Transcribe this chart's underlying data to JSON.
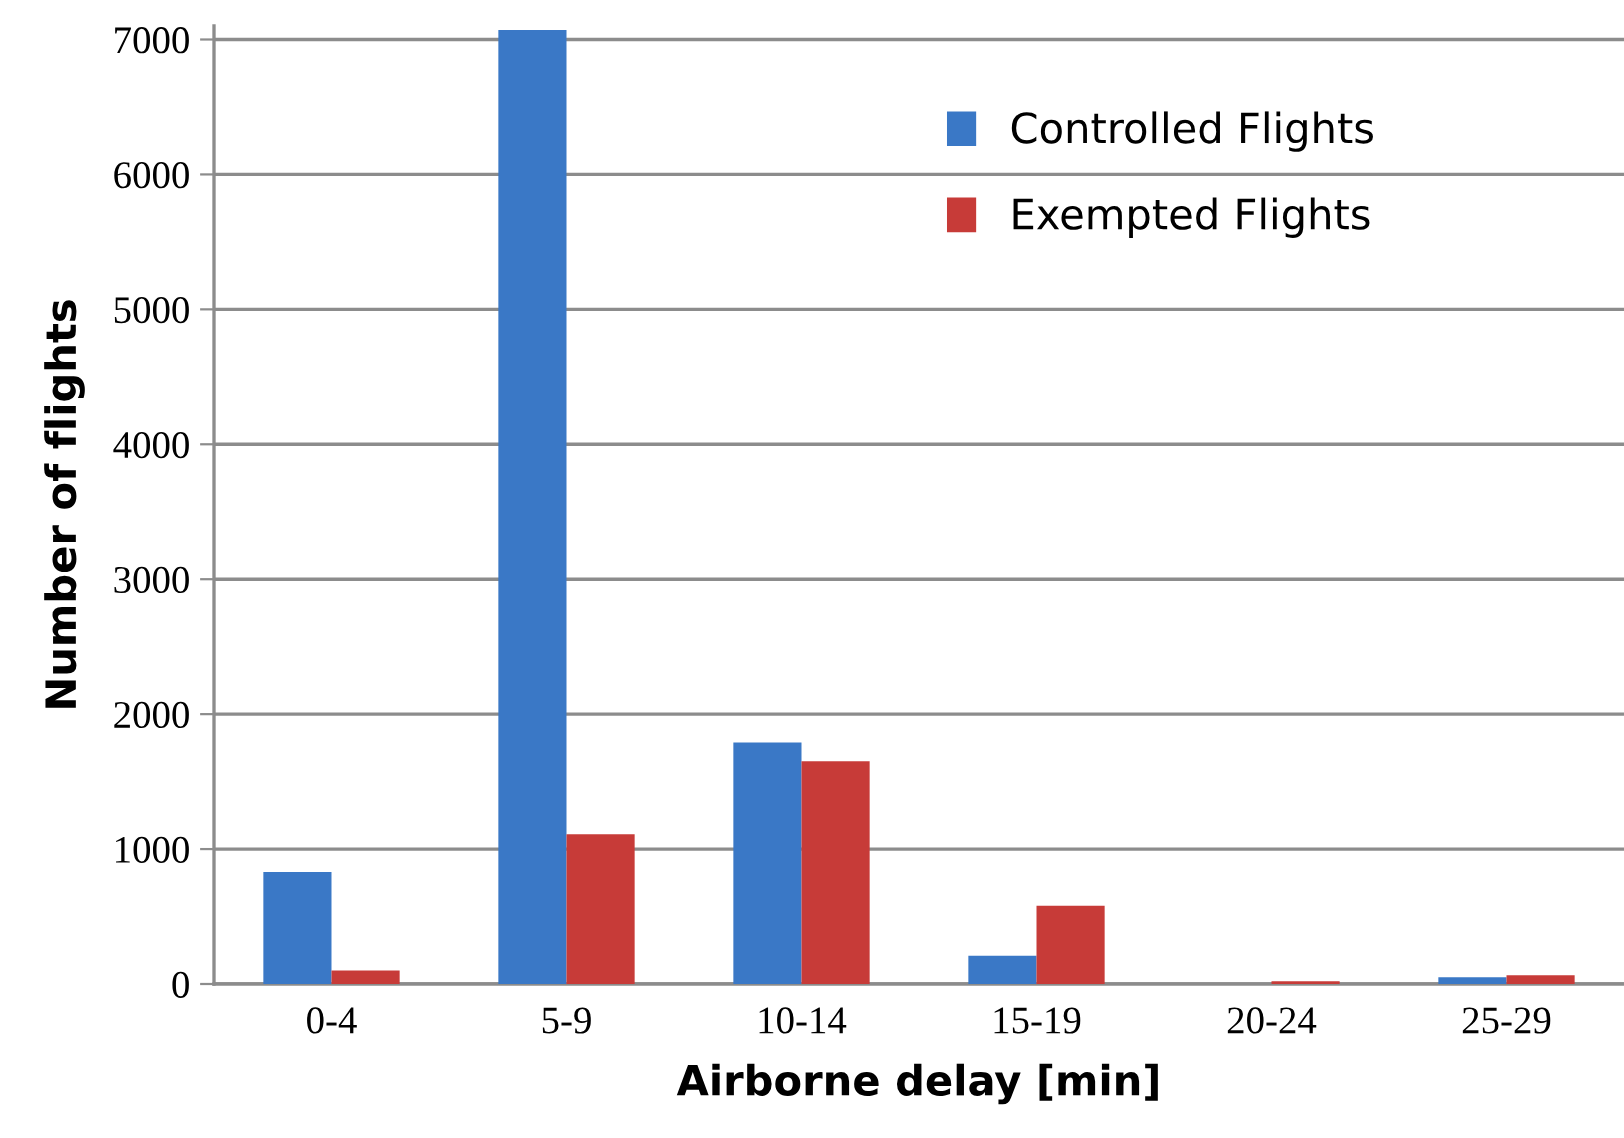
{
  "chart_data": {
    "type": "bar",
    "xlabel": "Airborne delay [min]",
    "ylabel": "Number of flights",
    "categories": [
      "0-4",
      "5-9",
      "10-14",
      "15-19",
      "20-24",
      "25-29"
    ],
    "series": [
      {
        "name": "Controlled Flights",
        "color": "#3a78c6",
        "values": [
          830,
          7070,
          1790,
          210,
          0,
          50
        ]
      },
      {
        "name": "Exempted Flights",
        "color": "#c73b38",
        "values": [
          100,
          1110,
          1650,
          580,
          20,
          65
        ]
      }
    ],
    "ylim": [
      0,
      7100
    ],
    "yticks": [
      0,
      1000,
      2000,
      3000,
      4000,
      5000,
      6000,
      7000
    ],
    "grid": "y",
    "legend": "top right"
  }
}
